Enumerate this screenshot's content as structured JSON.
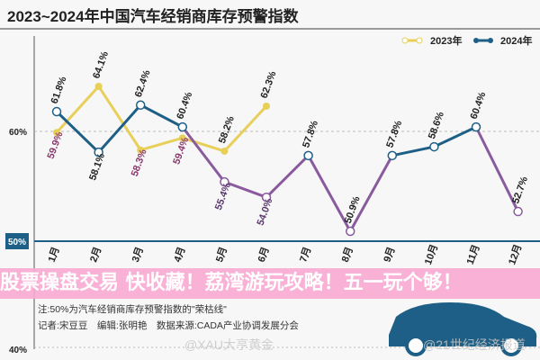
{
  "title": "2023~2024年中国汽车经销商库存预警指数",
  "chart_data": {
    "type": "line",
    "title": "2023~2024年中国汽车经销商库存预警指数",
    "categories": [
      "1月",
      "2月",
      "3月",
      "4月",
      "5月",
      "6月",
      "7月",
      "8月",
      "9月",
      "10月",
      "11月",
      "12月"
    ],
    "series": [
      {
        "name": "2023年",
        "color": "#e8cf5a",
        "values": [
          59.9,
          64.1,
          58.3,
          59.4,
          58.2,
          62.3,
          null,
          null,
          null,
          null,
          null,
          null
        ],
        "labels": [
          "59.9%",
          "64.1%",
          "58.3%",
          "59.4%",
          "58.2%",
          "62.3%"
        ]
      },
      {
        "name": "2024年",
        "color": "#1d5f86",
        "below_color": "#8a5a9e",
        "values": [
          61.8,
          58.1,
          62.4,
          60.4,
          55.4,
          54.0,
          57.8,
          50.9,
          57.8,
          58.6,
          60.4,
          52.7
        ],
        "labels": [
          "61.8%",
          "58.1%",
          "62.4%",
          "60.4%",
          "55.4%",
          "54.0%",
          "57.8%",
          "50.9%",
          "57.8%",
          "58.6%",
          "60.4%",
          "52.7%"
        ]
      }
    ],
    "y_ticks": [
      "60%",
      "50%",
      "40%"
    ],
    "ylim": [
      40,
      66
    ],
    "reference_line": {
      "value": 60,
      "style": "dashed"
    },
    "threshold_line": {
      "value": 50,
      "label": "50%",
      "color": "#1d5f86"
    },
    "legend": "top-right",
    "grid": false
  },
  "notes": {
    "note1": "注:50%为汽车经销商库存预警指数的\"荣枯线\"",
    "note2": "记者:宋豆豆　编辑:张明艳　数据来源:CADA产业协调发展分会"
  },
  "banner": "股票操盘交易 快收藏！荔湾游玩攻略！五一玩个够！",
  "watermarks": [
    "@XAU大亨黄金",
    "@21世纪经济报道"
  ]
}
